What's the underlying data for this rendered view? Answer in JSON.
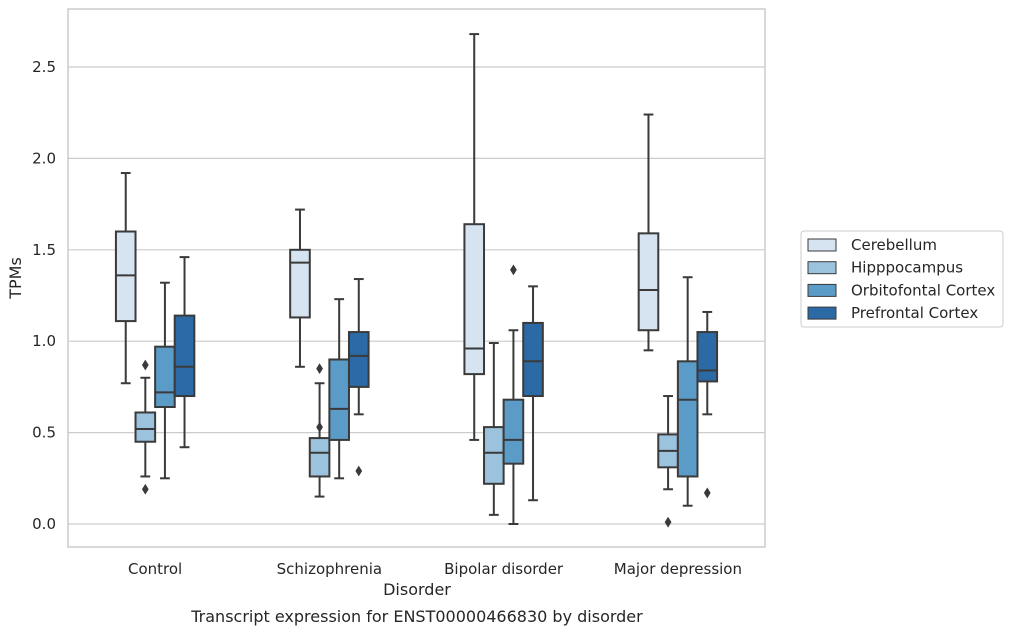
{
  "chart_data": {
    "type": "box",
    "title": "Transcript expression for ENST00000466830 by disorder",
    "xlabel": "Disorder",
    "ylabel": "TPMs",
    "ylim": [
      -0.13,
      2.83
    ],
    "yticks": [
      0.0,
      0.5,
      1.0,
      1.5,
      2.0,
      2.5
    ],
    "ytick_labels": [
      "0.0",
      "0.5",
      "1.0",
      "1.5",
      "2.0",
      "2.5"
    ],
    "grid": "horizontal",
    "legend_position": "right",
    "categories": [
      "Control",
      "Schizophrenia",
      "Bipolar disorder",
      "Major depression"
    ],
    "series": [
      {
        "name": "Cerebellum",
        "color": "#d6e3f1",
        "boxes": [
          {
            "whislo": 0.77,
            "q1": 1.11,
            "med": 1.36,
            "q3": 1.6,
            "whishi": 1.92,
            "fliers": []
          },
          {
            "whislo": 0.86,
            "q1": 1.13,
            "med": 1.43,
            "q3": 1.5,
            "whishi": 1.72,
            "fliers": []
          },
          {
            "whislo": 0.46,
            "q1": 0.82,
            "med": 0.96,
            "q3": 1.64,
            "whishi": 2.68,
            "fliers": []
          },
          {
            "whislo": 0.95,
            "q1": 1.06,
            "med": 1.28,
            "q3": 1.59,
            "whishi": 2.24,
            "fliers": []
          }
        ]
      },
      {
        "name": "Hipppocampus",
        "color": "#9cc3dd",
        "boxes": [
          {
            "whislo": 0.26,
            "q1": 0.45,
            "med": 0.52,
            "q3": 0.61,
            "whishi": 0.8,
            "fliers": [
              0.87,
              0.19
            ]
          },
          {
            "whislo": 0.15,
            "q1": 0.26,
            "med": 0.39,
            "q3": 0.47,
            "whishi": 0.77,
            "fliers": [
              0.85,
              0.53
            ]
          },
          {
            "whislo": 0.05,
            "q1": 0.22,
            "med": 0.39,
            "q3": 0.53,
            "whishi": 0.99,
            "fliers": []
          },
          {
            "whislo": 0.19,
            "q1": 0.31,
            "med": 0.4,
            "q3": 0.49,
            "whishi": 0.7,
            "fliers": [
              0.01
            ]
          }
        ]
      },
      {
        "name": "Orbitofontal Cortex",
        "color": "#5b9bc8",
        "boxes": [
          {
            "whislo": 0.25,
            "q1": 0.64,
            "med": 0.72,
            "q3": 0.97,
            "whishi": 1.32,
            "fliers": []
          },
          {
            "whislo": 0.25,
            "q1": 0.46,
            "med": 0.63,
            "q3": 0.9,
            "whishi": 1.23,
            "fliers": []
          },
          {
            "whislo": 0.0,
            "q1": 0.33,
            "med": 0.46,
            "q3": 0.68,
            "whishi": 1.06,
            "fliers": [
              1.39
            ]
          },
          {
            "whislo": 0.1,
            "q1": 0.26,
            "med": 0.68,
            "q3": 0.89,
            "whishi": 1.35,
            "fliers": []
          }
        ]
      },
      {
        "name": "Prefrontal Cortex",
        "color": "#2b6aa5",
        "boxes": [
          {
            "whislo": 0.42,
            "q1": 0.7,
            "med": 0.86,
            "q3": 1.14,
            "whishi": 1.46,
            "fliers": []
          },
          {
            "whislo": 0.6,
            "q1": 0.75,
            "med": 0.92,
            "q3": 1.05,
            "whishi": 1.34,
            "fliers": [
              0.29
            ]
          },
          {
            "whislo": 0.13,
            "q1": 0.7,
            "med": 0.89,
            "q3": 1.1,
            "whishi": 1.3,
            "fliers": []
          },
          {
            "whislo": 0.6,
            "q1": 0.78,
            "med": 0.84,
            "q3": 1.05,
            "whishi": 1.16,
            "fliers": [
              0.17
            ]
          }
        ]
      }
    ]
  }
}
